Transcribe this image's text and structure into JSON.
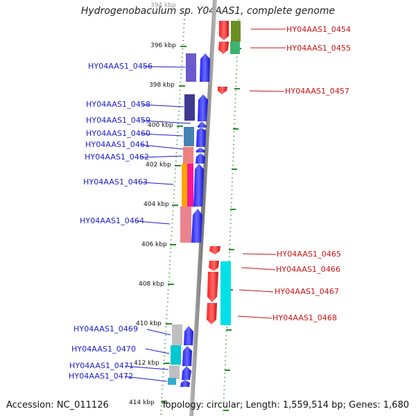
{
  "title": "Hydrogenobaculum sp. Y04AAS1, complete genome",
  "footer": {
    "accession": "Accession: NC_011126",
    "topology": "Topology: circular; Length: 1,559,514 bp; Genes: 1,680"
  },
  "axis": {
    "ticks": [
      "394 kbp",
      "396 kbp",
      "398 kbp",
      "400 kbp",
      "402 kbp",
      "404 kbp",
      "406 kbp",
      "408 kbp",
      "410 kbp",
      "412 kbp",
      "414 kbp"
    ]
  },
  "genes_left": [
    "HY04AAS1_0456",
    "HY04AAS1_0458",
    "HY04AAS1_0459",
    "HY04AAS1_0460",
    "HY04AAS1_0461",
    "HY04AAS1_0462",
    "HY04AAS1_0463",
    "HY04AAS1_0464",
    "HY04AAS1_0469",
    "HY04AAS1_0470",
    "HY04AAS1_0471",
    "HY04AAS1_0472"
  ],
  "genes_right": [
    "HY04AAS1_0454",
    "HY04AAS1_0455",
    "HY04AAS1_0457",
    "HY04AAS1_0465",
    "HY04AAS1_0466",
    "HY04AAS1_0467",
    "HY04AAS1_0468"
  ],
  "colors": {
    "forward_gene": "#0000ee",
    "reverse_gene": "#ee0000",
    "backbone": "#888888",
    "dotted_track": "#2a8a2a",
    "left_label": "#1a1acc",
    "right_label": "#cc1111"
  }
}
